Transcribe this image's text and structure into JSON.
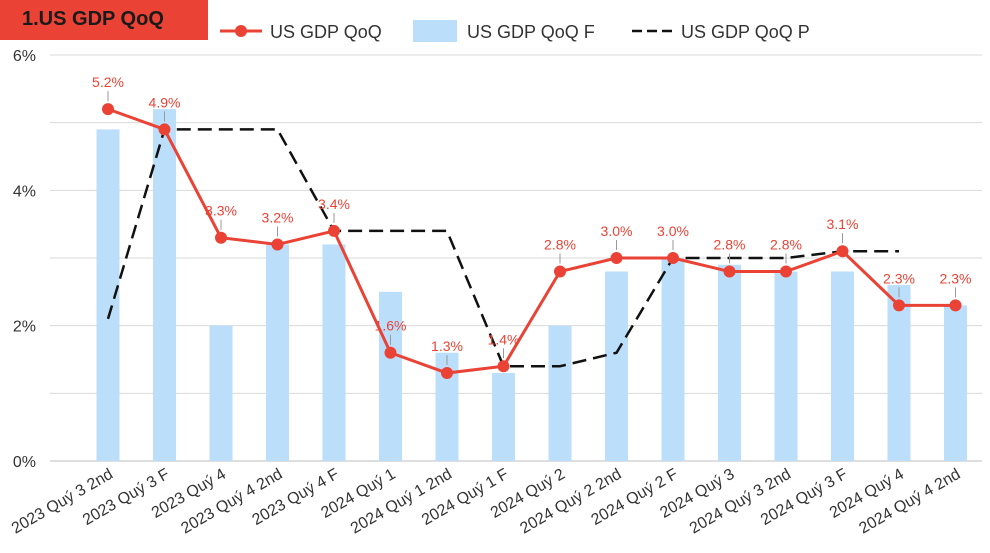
{
  "title": "1.US GDP QoQ",
  "colors": {
    "title_bg": "#ea4335",
    "line": "#ea4335",
    "bar": "#bbdefb",
    "dashed": "#111111",
    "grid": "#d9d9d9",
    "label": "#ea4335"
  },
  "chart_data": {
    "type": "bar",
    "categories": [
      "2023 Quý 3 2nd",
      "2023 Quý 3 F",
      "2023 Quý 4",
      "2023 Quý 4 2nd",
      "2023 Quý 4 F",
      "2024 Quý 1",
      "2024 Quý 1 2nd",
      "2024 Quý 1 F",
      "2024 Quý 2",
      "2024 Quý 2 2nd",
      "2024 Quý 2 F",
      "2024 Quý 3",
      "2024 Quý 3 2nd",
      "2024 Quý 3 F",
      "2024 Quý 4",
      "2024 Quý 4 2nd"
    ],
    "series": [
      {
        "name": "US GDP QoQ",
        "kind": "line",
        "values": [
          5.2,
          4.9,
          3.3,
          3.2,
          3.4,
          1.6,
          1.3,
          1.4,
          2.8,
          3.0,
          3.0,
          2.8,
          2.8,
          3.1,
          2.3,
          2.3
        ],
        "labels": [
          "5.2%",
          "4.9%",
          "3.3%",
          "3.2%",
          "3.4%",
          "1.6%",
          "1.3%",
          "1.4%",
          "2.8%",
          "3.0%",
          "3.0%",
          "2.8%",
          "2.8%",
          "3.1%",
          "2.3%",
          "2.3%"
        ]
      },
      {
        "name": "US GDP QoQ F",
        "kind": "bar",
        "values": [
          4.9,
          5.2,
          2.0,
          3.2,
          3.2,
          2.5,
          1.6,
          1.3,
          2.0,
          2.8,
          3.0,
          2.9,
          2.8,
          2.8,
          2.6,
          2.3
        ]
      },
      {
        "name": "US GDP QoQ P",
        "kind": "dashed-line",
        "values": [
          2.1,
          4.9,
          4.9,
          4.9,
          3.4,
          3.4,
          3.4,
          1.4,
          1.4,
          1.6,
          3.0,
          3.0,
          3.0,
          3.1,
          3.1,
          null
        ]
      }
    ],
    "y_ticks": [
      "0%",
      "2%",
      "4%",
      "6%"
    ],
    "ylim": [
      0,
      6
    ],
    "legend_position": "top",
    "grid": true
  }
}
